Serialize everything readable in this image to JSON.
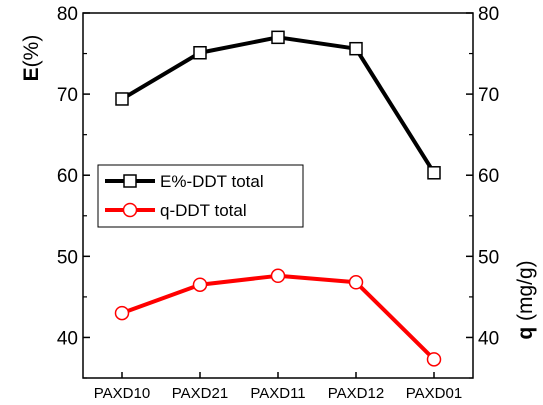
{
  "chart_data": {
    "type": "line",
    "categories": [
      "PAXD10",
      "PAXD21",
      "PAXD11",
      "PAXD12",
      "PAXD01"
    ],
    "y_left": {
      "label_bold": "E",
      "label_rest": "(%)",
      "ylim": [
        35,
        80
      ],
      "ticks": [
        40,
        50,
        60,
        70,
        80
      ]
    },
    "y_right": {
      "label_bold": "q",
      "label_rest": " (mg/g)",
      "ylim": [
        35,
        80
      ],
      "ticks": [
        40,
        50,
        60,
        70,
        80
      ]
    },
    "series": [
      {
        "name": "E%-DDT total",
        "axis": "left",
        "color": "#000000",
        "marker": "square",
        "values": [
          69.4,
          75.1,
          77.0,
          75.6,
          60.3
        ]
      },
      {
        "name": "q-DDT total",
        "axis": "right",
        "color": "#ff0000",
        "marker": "circle",
        "values": [
          43.0,
          46.5,
          47.6,
          46.8,
          37.3
        ]
      }
    ],
    "legend_position": "middle-left",
    "grid": false
  }
}
